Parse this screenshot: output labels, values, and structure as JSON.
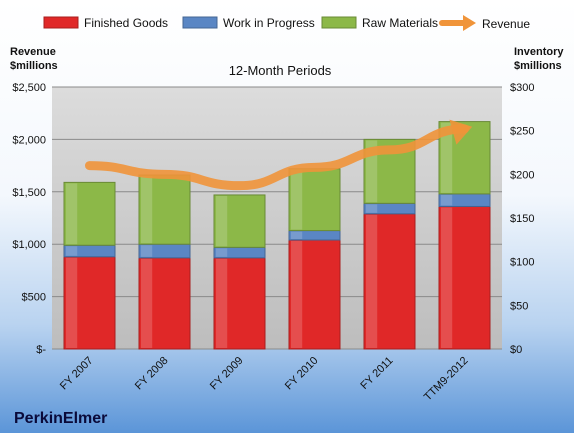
{
  "chart_data": {
    "type": "bar",
    "subtitle": "12-Month Periods",
    "company": "PerkinElmer",
    "categories": [
      "FY 2007",
      "FY 2008",
      "FY 2009",
      "FY 2010",
      "FY 2011",
      "TTM9-2012"
    ],
    "series": [
      {
        "name": "Finished Goods",
        "color": "#e02828",
        "axis": "left",
        "values": [
          880,
          870,
          870,
          1040,
          1290,
          1360
        ]
      },
      {
        "name": "Work in Progress",
        "color": "#5a86c4",
        "axis": "left",
        "values": [
          110,
          130,
          100,
          90,
          100,
          120
        ]
      },
      {
        "name": "Raw Materials",
        "color": "#8cb848",
        "axis": "left",
        "values": [
          600,
          660,
          500,
          590,
          610,
          690
        ]
      },
      {
        "name": "Revenue",
        "color": "#f0943a",
        "type": "line",
        "axis": "right",
        "values": [
          210,
          200,
          187,
          208,
          228,
          252
        ]
      }
    ],
    "ylabel_left": [
      "Revenue",
      "$millions"
    ],
    "ylabel_right": [
      "Inventory",
      "$millions"
    ],
    "ylim_left": [
      0,
      2500
    ],
    "yticks_left": [
      "$-",
      "$500",
      "$1,000",
      "$1,500",
      "$2,000",
      "$2,500"
    ],
    "ylim_right": [
      0,
      300
    ],
    "yticks_right": [
      "$0",
      "$50",
      "$100",
      "$150",
      "$200",
      "$250",
      "$300"
    ],
    "legend_position": "top",
    "grid": true
  }
}
